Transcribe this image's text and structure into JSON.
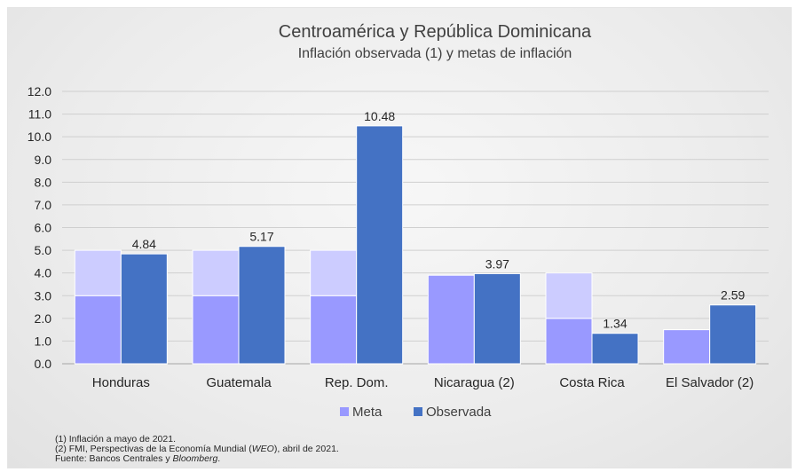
{
  "chart_data": {
    "type": "bar",
    "title": "Centroamérica y República Dominicana",
    "subtitle": "Inflación observada (1) y metas de inflación",
    "categories": [
      "Honduras",
      "Guatemala",
      "Rep. Dom.",
      "Nicaragua (2)",
      "Costa Rica",
      "El Salvador (2)"
    ],
    "series": [
      {
        "name": "Meta",
        "kind": "target-range",
        "color": "#9999ff",
        "band_color": "#ccccff",
        "low": [
          3.0,
          3.0,
          3.0,
          3.9,
          2.0,
          1.5
        ],
        "high": [
          5.0,
          5.0,
          5.0,
          3.9,
          4.0,
          1.5
        ]
      },
      {
        "name": "Observada",
        "color": "#4472c4",
        "values": [
          4.84,
          5.17,
          10.48,
          3.97,
          1.34,
          2.59
        ],
        "labels": [
          "4.84",
          "5.17",
          "10.48",
          "3.97",
          "1.34",
          "2.59"
        ]
      }
    ],
    "ylim": [
      0,
      12
    ],
    "yticks": [
      "0.0",
      "1.0",
      "2.0",
      "3.0",
      "4.0",
      "5.0",
      "6.0",
      "7.0",
      "8.0",
      "9.0",
      "10.0",
      "11.0",
      "12.0"
    ],
    "grid": true,
    "legend": "bottom",
    "xlabel": "",
    "ylabel": ""
  },
  "notes": {
    "line1": "(1) Inflación a mayo de 2021.",
    "line2_pre": "(2) FMI, Perspectivas de la Economía Mundial (",
    "line2_em": "WEO",
    "line2_post": "), abril de 2021.",
    "line3_pre": "Fuente: Bancos Centrales y ",
    "line3_em": "Bloomberg",
    "line3_post": "."
  }
}
